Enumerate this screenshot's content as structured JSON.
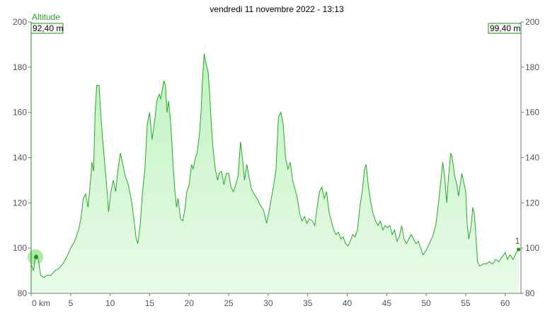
{
  "chart_data": {
    "type": "area",
    "title": "vendredi 11 novembre 2022 - 13:13",
    "series": [
      {
        "name": "Altitude"
      }
    ],
    "ylim": [
      80,
      200
    ],
    "xlim": [
      0,
      62
    ],
    "y_ticks": [
      "80",
      "100",
      "120",
      "140",
      "160",
      "180",
      "200"
    ],
    "x_ticks": [
      {
        "v": 0,
        "label": "0 km"
      },
      {
        "v": 5,
        "label": "5"
      },
      {
        "v": 10,
        "label": "10"
      },
      {
        "v": 15,
        "label": "15"
      },
      {
        "v": 20,
        "label": "20"
      },
      {
        "v": 25,
        "label": "25"
      },
      {
        "v": 30,
        "label": "30"
      },
      {
        "v": 35,
        "label": "35"
      },
      {
        "v": 40,
        "label": "40"
      },
      {
        "v": 45,
        "label": "45"
      },
      {
        "v": 50,
        "label": "50"
      },
      {
        "v": 55,
        "label": "55"
      },
      {
        "v": 60,
        "label": "60"
      }
    ],
    "start_value": "92,40 m",
    "end_value": "99,40 m",
    "end_marker": "1",
    "colors": {
      "line": "#22aa22",
      "fill_top": "#bff2bf",
      "fill_bottom": "#e9fbe9",
      "marker": "#a8eaa8"
    },
    "points": [
      [
        0,
        93
      ],
      [
        0.3,
        90
      ],
      [
        0.6,
        97
      ],
      [
        0.9,
        95
      ],
      [
        1.2,
        88
      ],
      [
        1.6,
        87
      ],
      [
        2,
        88
      ],
      [
        2.5,
        88
      ],
      [
        3,
        90
      ],
      [
        3.5,
        91
      ],
      [
        4,
        93
      ],
      [
        4.5,
        96
      ],
      [
        5,
        100
      ],
      [
        5.5,
        103
      ],
      [
        6,
        108
      ],
      [
        6.3,
        113
      ],
      [
        6.6,
        122
      ],
      [
        6.9,
        124
      ],
      [
        7.2,
        118
      ],
      [
        7.5,
        129
      ],
      [
        7.7,
        138
      ],
      [
        7.9,
        134
      ],
      [
        8.1,
        160
      ],
      [
        8.3,
        172
      ],
      [
        8.6,
        172
      ],
      [
        8.8,
        160
      ],
      [
        9,
        150
      ],
      [
        9.3,
        138
      ],
      [
        9.6,
        126
      ],
      [
        9.8,
        116
      ],
      [
        10.1,
        125
      ],
      [
        10.4,
        130
      ],
      [
        10.7,
        125
      ],
      [
        11,
        135
      ],
      [
        11.3,
        142
      ],
      [
        11.6,
        137
      ],
      [
        11.9,
        132
      ],
      [
        12.3,
        128
      ],
      [
        12.7,
        121
      ],
      [
        13,
        113
      ],
      [
        13.3,
        104
      ],
      [
        13.5,
        102
      ],
      [
        13.8,
        110
      ],
      [
        14.1,
        125
      ],
      [
        14.4,
        135
      ],
      [
        14.7,
        155
      ],
      [
        15,
        160
      ],
      [
        15.3,
        148
      ],
      [
        15.6,
        155
      ],
      [
        15.9,
        165
      ],
      [
        16.2,
        168
      ],
      [
        16.4,
        166
      ],
      [
        16.6,
        170
      ],
      [
        16.8,
        174
      ],
      [
        17,
        172
      ],
      [
        17.2,
        160
      ],
      [
        17.4,
        165
      ],
      [
        17.6,
        158
      ],
      [
        17.8,
        147
      ],
      [
        18,
        135
      ],
      [
        18.2,
        125
      ],
      [
        18.4,
        118
      ],
      [
        18.6,
        122
      ],
      [
        18.9,
        113
      ],
      [
        19.2,
        112
      ],
      [
        19.5,
        118
      ],
      [
        19.7,
        125
      ],
      [
        20,
        128
      ],
      [
        20.3,
        137
      ],
      [
        20.5,
        135
      ],
      [
        20.8,
        140
      ],
      [
        21,
        142
      ],
      [
        21.3,
        150
      ],
      [
        21.5,
        160
      ],
      [
        21.7,
        175
      ],
      [
        21.9,
        186
      ],
      [
        22.1,
        182
      ],
      [
        22.4,
        178
      ],
      [
        22.6,
        168
      ],
      [
        22.8,
        155
      ],
      [
        23,
        145
      ],
      [
        23.3,
        135
      ],
      [
        23.6,
        130
      ],
      [
        23.8,
        133
      ],
      [
        24.1,
        134
      ],
      [
        24.4,
        128
      ],
      [
        24.7,
        133
      ],
      [
        25,
        133
      ],
      [
        25.3,
        127
      ],
      [
        25.6,
        125
      ],
      [
        25.9,
        128
      ],
      [
        26.2,
        132
      ],
      [
        26.5,
        147
      ],
      [
        26.8,
        138
      ],
      [
        27,
        130
      ],
      [
        27.3,
        137
      ],
      [
        27.6,
        131
      ],
      [
        27.9,
        126
      ],
      [
        28.2,
        124
      ],
      [
        28.6,
        122
      ],
      [
        29,
        119
      ],
      [
        29.4,
        117
      ],
      [
        29.8,
        111
      ],
      [
        30.1,
        116
      ],
      [
        30.4,
        122
      ],
      [
        30.7,
        128
      ],
      [
        31,
        135
      ],
      [
        31.3,
        158
      ],
      [
        31.6,
        160
      ],
      [
        31.9,
        155
      ],
      [
        32.2,
        140
      ],
      [
        32.5,
        135
      ],
      [
        32.8,
        138
      ],
      [
        33.1,
        130
      ],
      [
        33.4,
        126
      ],
      [
        33.7,
        122
      ],
      [
        34,
        115
      ],
      [
        34.3,
        112
      ],
      [
        34.6,
        114
      ],
      [
        34.9,
        111
      ],
      [
        35.2,
        113
      ],
      [
        35.6,
        112
      ],
      [
        35.9,
        110
      ],
      [
        36.2,
        118
      ],
      [
        36.5,
        125
      ],
      [
        36.8,
        127
      ],
      [
        37.1,
        122
      ],
      [
        37.4,
        125
      ],
      [
        37.7,
        116
      ],
      [
        38,
        112
      ],
      [
        38.3,
        108
      ],
      [
        38.6,
        106
      ],
      [
        38.9,
        107
      ],
      [
        39.2,
        104
      ],
      [
        39.5,
        105
      ],
      [
        39.8,
        102
      ],
      [
        40.1,
        101
      ],
      [
        40.4,
        103
      ],
      [
        40.7,
        106
      ],
      [
        41,
        105
      ],
      [
        41.3,
        108
      ],
      [
        41.6,
        118
      ],
      [
        41.9,
        125
      ],
      [
        42.2,
        135
      ],
      [
        42.4,
        137
      ],
      [
        42.7,
        127
      ],
      [
        43,
        120
      ],
      [
        43.3,
        115
      ],
      [
        43.6,
        112
      ],
      [
        43.9,
        110
      ],
      [
        44.2,
        112
      ],
      [
        44.5,
        108
      ],
      [
        44.8,
        110
      ],
      [
        45.1,
        109
      ],
      [
        45.4,
        110
      ],
      [
        45.7,
        106
      ],
      [
        46,
        108
      ],
      [
        46.3,
        103
      ],
      [
        46.6,
        105
      ],
      [
        46.9,
        110
      ],
      [
        47.2,
        104
      ],
      [
        47.5,
        102
      ],
      [
        47.8,
        104
      ],
      [
        48.1,
        106
      ],
      [
        48.4,
        104
      ],
      [
        48.7,
        102
      ],
      [
        49,
        103
      ],
      [
        49.3,
        100
      ],
      [
        49.6,
        97
      ],
      [
        50,
        99
      ],
      [
        50.4,
        102
      ],
      [
        50.8,
        105
      ],
      [
        51.2,
        110
      ],
      [
        51.5,
        118
      ],
      [
        51.8,
        128
      ],
      [
        52.1,
        138
      ],
      [
        52.3,
        133
      ],
      [
        52.6,
        120
      ],
      [
        52.8,
        130
      ],
      [
        53.1,
        142
      ],
      [
        53.3,
        140
      ],
      [
        53.6,
        132
      ],
      [
        53.9,
        128
      ],
      [
        54.1,
        123
      ],
      [
        54.3,
        128
      ],
      [
        54.5,
        133
      ],
      [
        54.7,
        130
      ],
      [
        55,
        125
      ],
      [
        55.2,
        110
      ],
      [
        55.4,
        104
      ],
      [
        55.7,
        110
      ],
      [
        55.9,
        118
      ],
      [
        56.1,
        115
      ],
      [
        56.3,
        105
      ],
      [
        56.5,
        94
      ],
      [
        56.8,
        92
      ],
      [
        57.2,
        93
      ],
      [
        57.6,
        93
      ],
      [
        58,
        94
      ],
      [
        58.4,
        93
      ],
      [
        58.8,
        95
      ],
      [
        59.2,
        94
      ],
      [
        59.6,
        96
      ],
      [
        60,
        98
      ],
      [
        60.3,
        95
      ],
      [
        60.6,
        97
      ],
      [
        61,
        95
      ],
      [
        61.4,
        98
      ],
      [
        61.7,
        99.4
      ]
    ]
  }
}
